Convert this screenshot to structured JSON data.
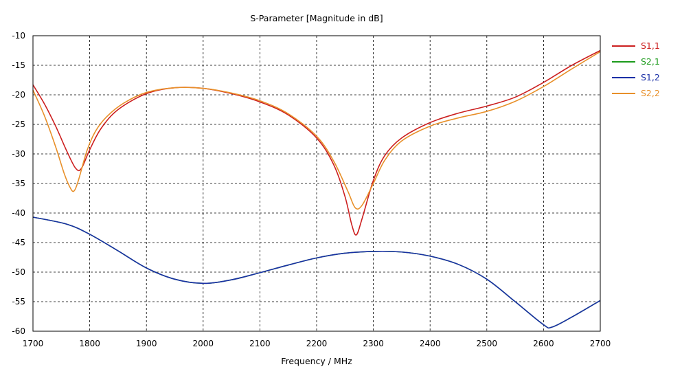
{
  "chart_data": {
    "type": "line",
    "title": "S-Parameter [Magnitude in dB]",
    "xlabel": "Frequency / MHz",
    "ylabel": "",
    "xlim": [
      1700,
      2700
    ],
    "ylim": [
      -60,
      -10
    ],
    "xticks": [
      1700,
      1800,
      1900,
      2000,
      2100,
      2200,
      2300,
      2400,
      2500,
      2600,
      2700
    ],
    "yticks": [
      -10,
      -15,
      -20,
      -25,
      -30,
      -35,
      -40,
      -45,
      -50,
      -55,
      -60
    ],
    "grid": true,
    "legend_position": "right",
    "series": [
      {
        "name": "S1,1",
        "color": "#cc1f1f",
        "x": [
          1700,
          1720,
          1740,
          1760,
          1775,
          1785,
          1800,
          1820,
          1850,
          1900,
          1950,
          2000,
          2050,
          2100,
          2150,
          2200,
          2230,
          2250,
          2262,
          2270,
          2280,
          2300,
          2320,
          2350,
          2400,
          2450,
          2500,
          2550,
          2600,
          2650,
          2700
        ],
        "y": [
          -18.3,
          -21.5,
          -25.3,
          -29.6,
          -32.4,
          -32.5,
          -29.3,
          -25.7,
          -22.5,
          -19.8,
          -18.8,
          -18.9,
          -19.8,
          -21.2,
          -23.4,
          -27.3,
          -31.8,
          -37.2,
          -42.0,
          -43.7,
          -41.0,
          -34.5,
          -30.3,
          -27.3,
          -24.7,
          -23.1,
          -21.9,
          -20.4,
          -17.9,
          -15.0,
          -12.5
        ]
      },
      {
        "name": "S2,1",
        "color": "#1a9a1a",
        "x": [
          1700,
          1760,
          1800,
          1850,
          1900,
          1950,
          2000,
          2050,
          2100,
          2150,
          2200,
          2250,
          2300,
          2350,
          2400,
          2450,
          2500,
          2550,
          2600,
          2615,
          2650,
          2700
        ],
        "y": [
          -40.7,
          -41.9,
          -43.6,
          -46.4,
          -49.3,
          -51.2,
          -51.9,
          -51.3,
          -50.1,
          -48.8,
          -47.6,
          -46.8,
          -46.5,
          -46.6,
          -47.3,
          -48.7,
          -51.2,
          -55.0,
          -58.9,
          -59.3,
          -57.6,
          -54.8
        ]
      },
      {
        "name": "S1,2",
        "color": "#1a2fa6",
        "x": [
          1700,
          1760,
          1800,
          1850,
          1900,
          1950,
          2000,
          2050,
          2100,
          2150,
          2200,
          2250,
          2300,
          2350,
          2400,
          2450,
          2500,
          2550,
          2600,
          2615,
          2650,
          2700
        ],
        "y": [
          -40.7,
          -41.9,
          -43.6,
          -46.4,
          -49.3,
          -51.2,
          -51.9,
          -51.3,
          -50.1,
          -48.8,
          -47.6,
          -46.8,
          -46.5,
          -46.6,
          -47.3,
          -48.7,
          -51.2,
          -55.0,
          -58.9,
          -59.3,
          -57.6,
          -54.8
        ]
      },
      {
        "name": "S2,2",
        "color": "#e8902a",
        "x": [
          1700,
          1720,
          1740,
          1755,
          1765,
          1772,
          1780,
          1795,
          1810,
          1830,
          1860,
          1900,
          1950,
          2000,
          2050,
          2100,
          2150,
          2200,
          2230,
          2255,
          2268,
          2280,
          2300,
          2320,
          2350,
          2400,
          2450,
          2500,
          2550,
          2600,
          2650,
          2700
        ],
        "y": [
          -19.2,
          -23.5,
          -28.8,
          -33.3,
          -35.6,
          -36.3,
          -34.5,
          -29.5,
          -26.2,
          -23.7,
          -21.4,
          -19.6,
          -18.8,
          -18.9,
          -19.7,
          -21.0,
          -23.2,
          -27.0,
          -31.2,
          -36.3,
          -39.1,
          -38.7,
          -35.0,
          -31.1,
          -27.8,
          -25.3,
          -23.9,
          -22.8,
          -21.1,
          -18.6,
          -15.6,
          -12.7
        ]
      }
    ]
  }
}
